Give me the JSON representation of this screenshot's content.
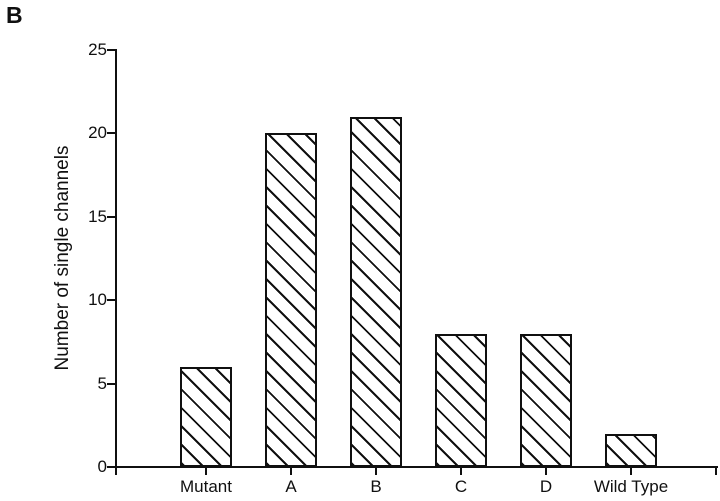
{
  "figure": {
    "panel_label": "B"
  },
  "chart_data": {
    "type": "bar",
    "title": "",
    "categories": [
      "Mutant",
      "A",
      "B",
      "C",
      "D",
      "Wild Type"
    ],
    "values": [
      6,
      20,
      21,
      8,
      8,
      2
    ],
    "xlabel": "",
    "ylabel": "Number of single channels",
    "ylim": [
      0,
      25
    ],
    "yticks": [
      0,
      5,
      10,
      15,
      20,
      25
    ],
    "grid": false,
    "legend": "none",
    "bar_style": {
      "fill": "hatch-backslash",
      "stroke": "#101010",
      "background": "#ffffff"
    }
  }
}
